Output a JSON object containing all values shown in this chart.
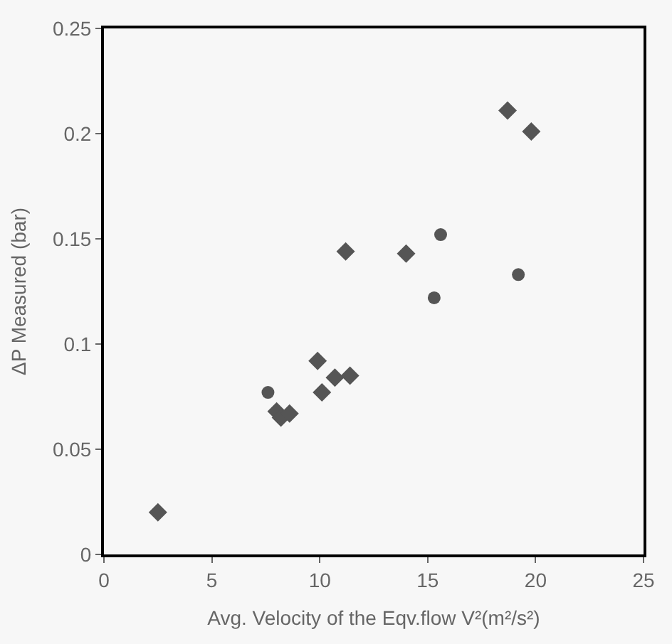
{
  "chart_data": {
    "type": "scatter",
    "xlabel": "Avg. Velocity of the Eqv.flow V²(m²/s²)",
    "ylabel": "ΔP Measured (bar)",
    "xlim": [
      0,
      25
    ],
    "xticks": [
      0,
      5,
      10,
      15,
      20,
      25
    ],
    "ylim": [
      0,
      0.25
    ],
    "yticks": [
      0,
      0.05,
      0.1,
      0.15,
      0.2,
      0.25
    ],
    "grid": false,
    "series": [
      {
        "color": "#555555",
        "marker": "diamond",
        "x": [
          18.7,
          19.8,
          11.2,
          14.0,
          2.5,
          8.0,
          8.2,
          8.6,
          9.9,
          10.1,
          10.7,
          11.4
        ],
        "values": [
          0.211,
          0.201,
          0.144,
          0.143,
          0.02,
          0.068,
          0.065,
          0.067,
          0.092,
          0.077,
          0.084,
          0.085
        ]
      },
      {
        "color": "#555555",
        "marker": "circle",
        "x": [
          15.6,
          15.3,
          19.2,
          7.6
        ],
        "values": [
          0.152,
          0.122,
          0.133,
          0.077
        ]
      }
    ]
  }
}
